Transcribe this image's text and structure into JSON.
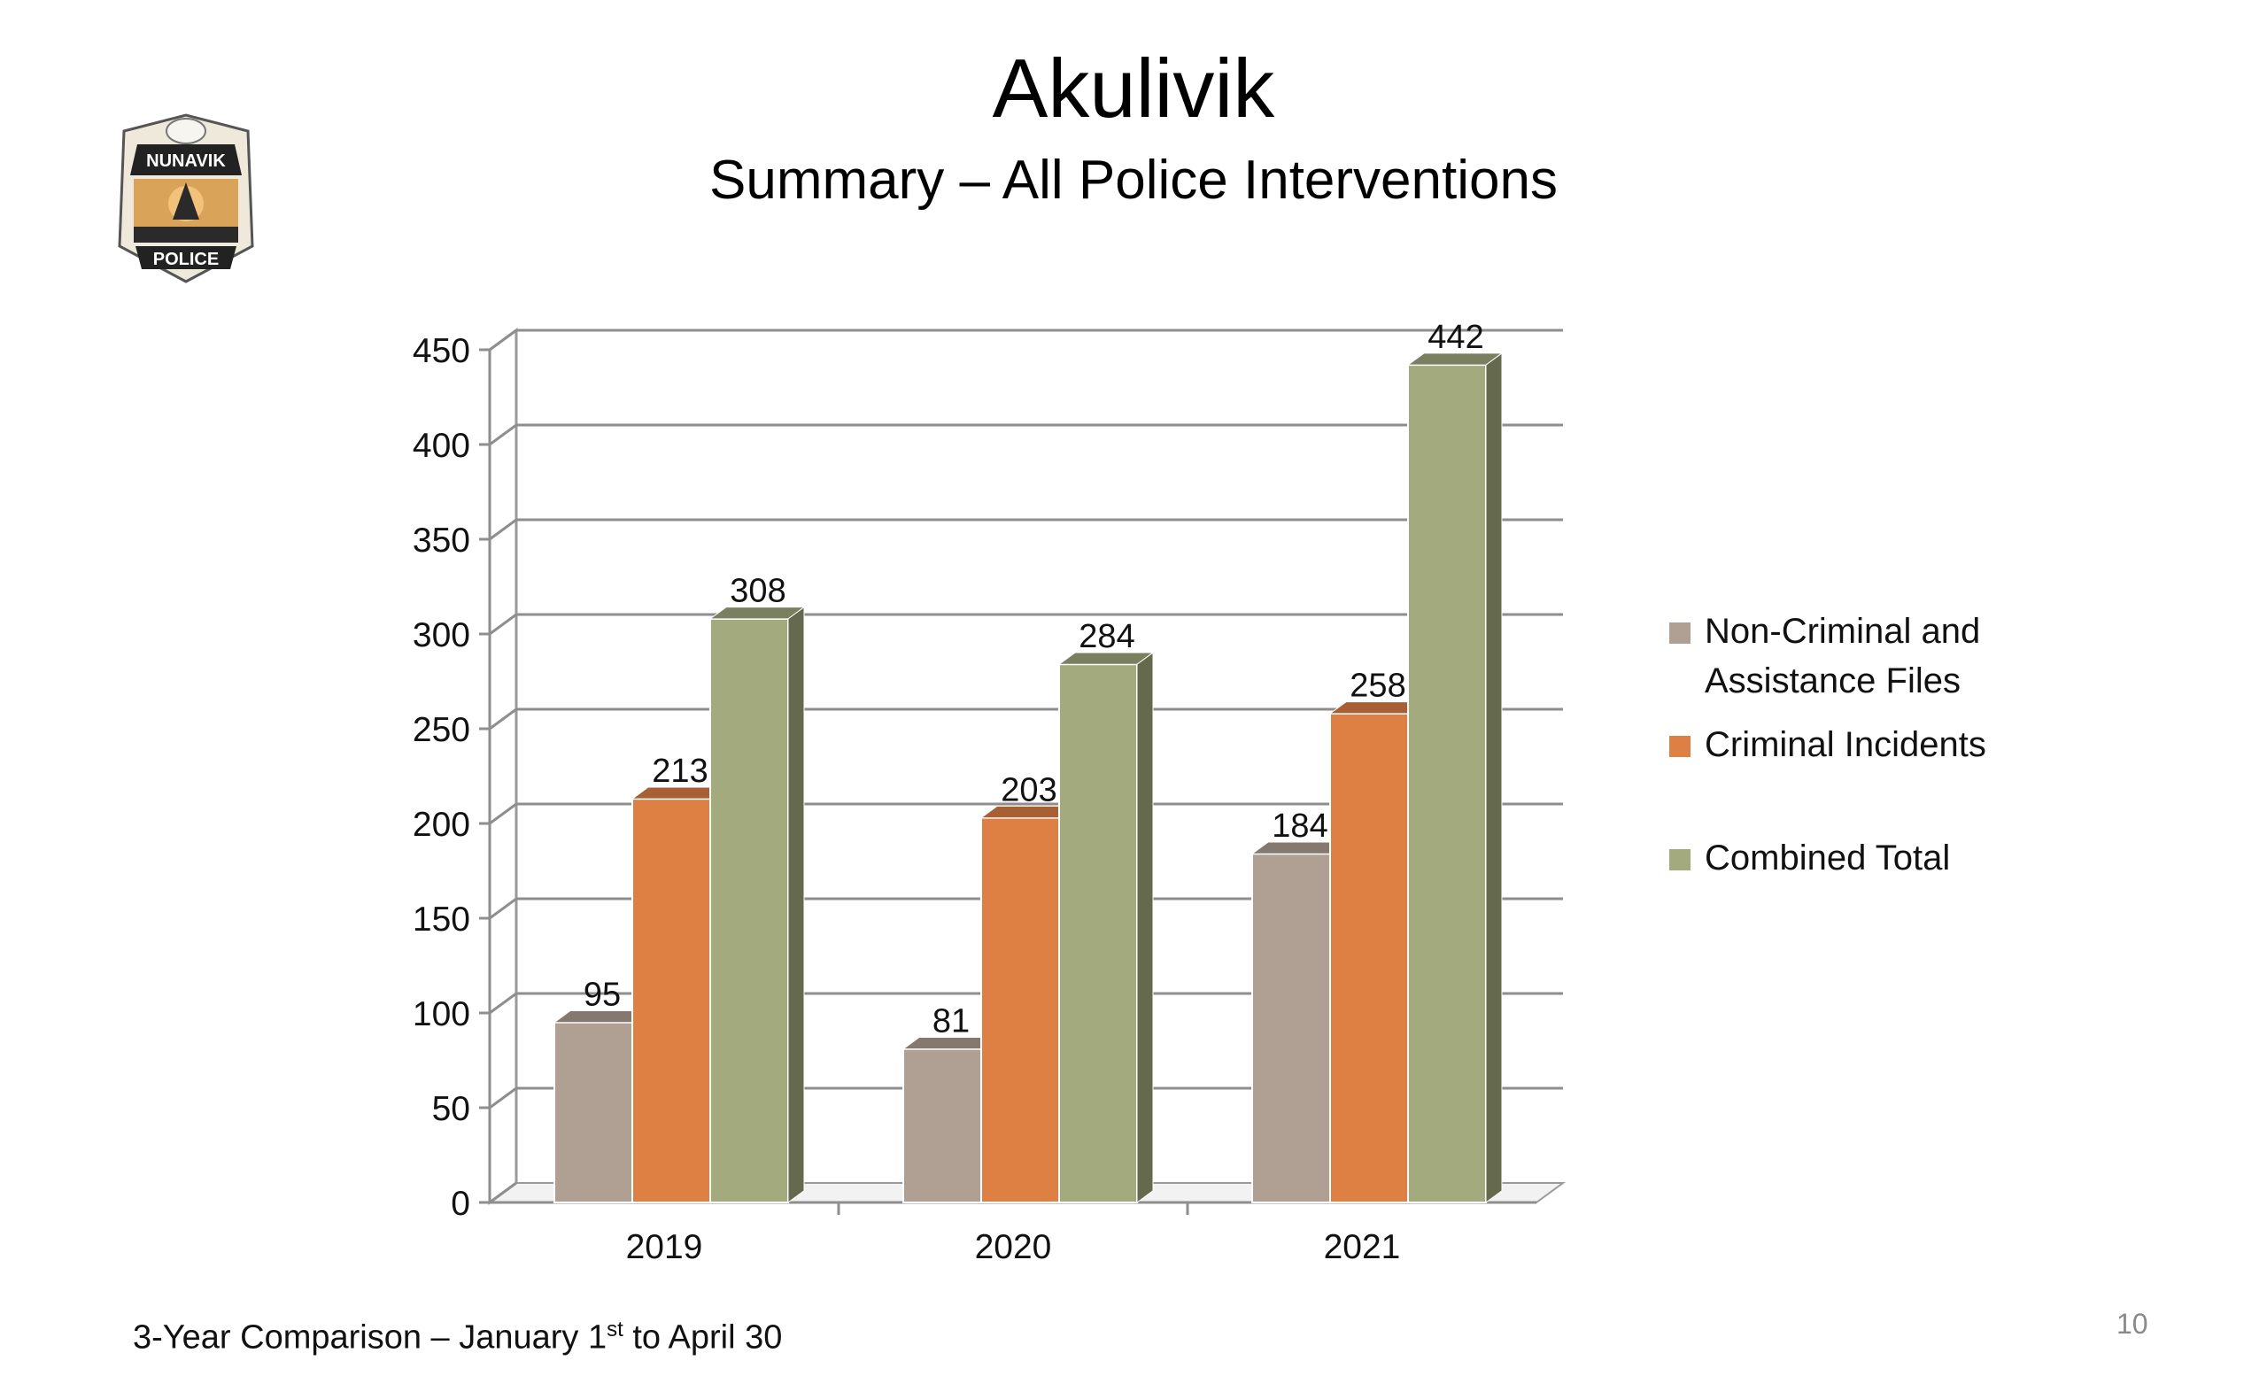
{
  "header": {
    "title": "Akulivik",
    "subtitle": "Summary – All Police Interventions"
  },
  "logo": {
    "icon": "nunavik-police-badge",
    "top_text": "NUNAVIK",
    "bottom_text": "POLICE"
  },
  "chart_data": {
    "type": "bar",
    "style": "3d-clustered-column",
    "title": "",
    "xlabel": "",
    "ylabel": "",
    "categories": [
      "2019",
      "2020",
      "2021"
    ],
    "series": [
      {
        "name": "Non-Criminal and Assistance Files",
        "values": [
          95,
          81,
          184
        ],
        "color": "#b0a094"
      },
      {
        "name": "Criminal Incidents",
        "values": [
          213,
          203,
          258
        ],
        "color": "#de7f44"
      },
      {
        "name": "Combined Total",
        "values": [
          308,
          284,
          442
        ],
        "color": "#a3ab7e"
      }
    ],
    "ylim": [
      0,
      450
    ],
    "yticks": [
      0,
      50,
      100,
      150,
      200,
      250,
      300,
      350,
      400,
      450
    ],
    "grid": true,
    "data_labels": true,
    "legend_position": "right"
  },
  "footer": {
    "prefix": "3-Year Comparison – January 1",
    "superscript": "st",
    "suffix": " to April 30"
  },
  "page_number": "10"
}
